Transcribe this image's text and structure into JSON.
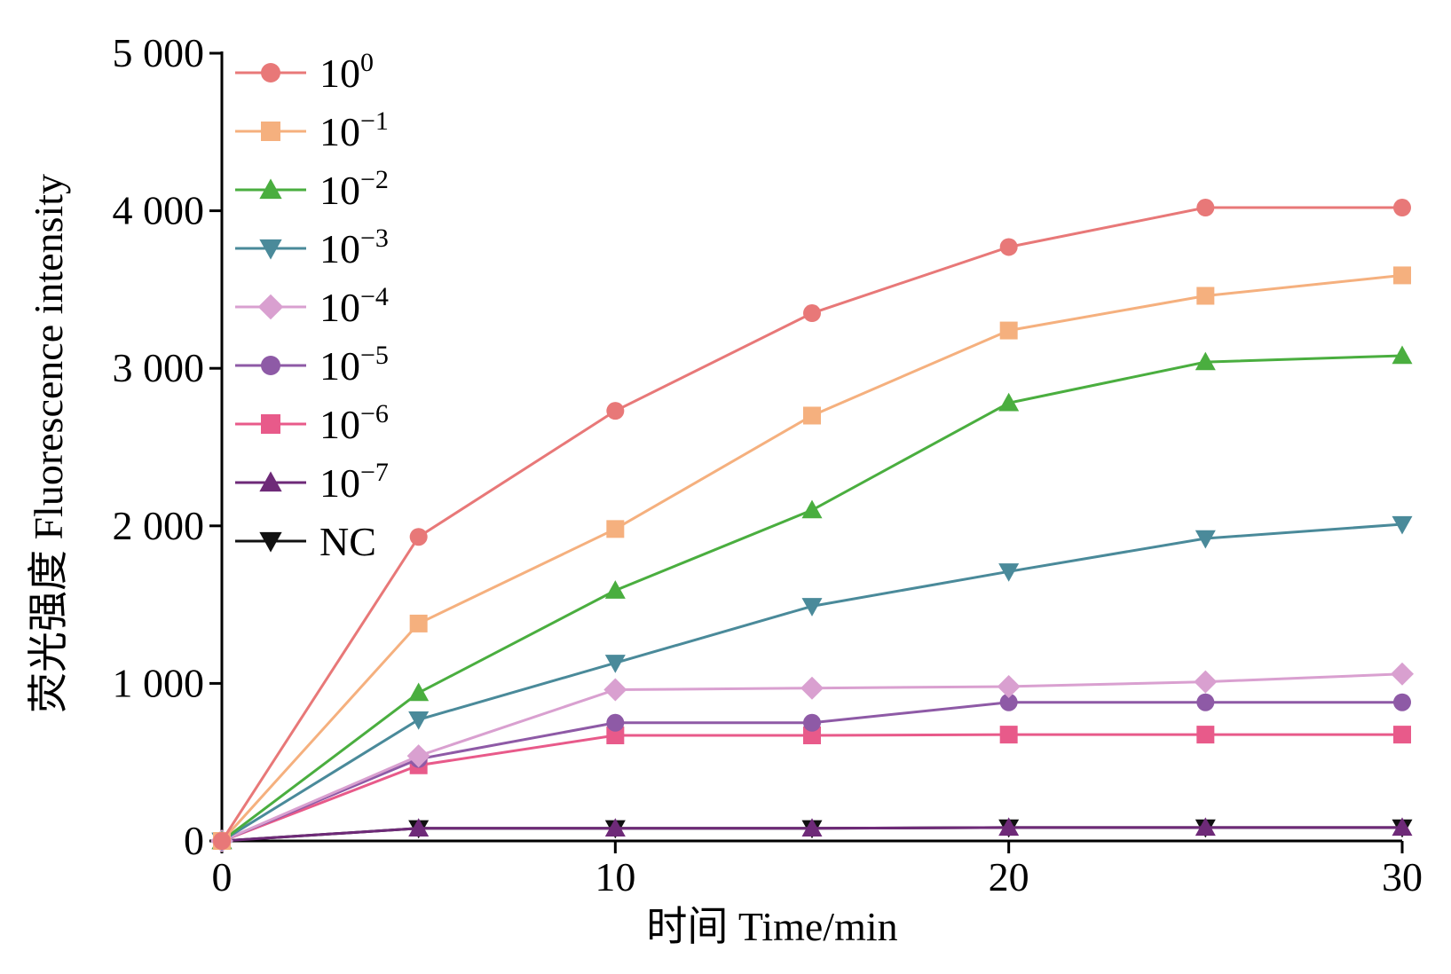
{
  "chart_data": {
    "type": "line",
    "xlabel": "时间 Time/min",
    "ylabel": "荧光强度 Fluorescence intensity",
    "x": [
      0,
      5,
      10,
      15,
      20,
      25,
      30
    ],
    "xlim": [
      0,
      30
    ],
    "ylim": [
      0,
      5000
    ],
    "xticks": [
      0,
      10,
      20,
      30
    ],
    "xtick_labels": [
      "0",
      "10",
      "20",
      "30"
    ],
    "yticks": [
      0,
      1000,
      2000,
      3000,
      4000,
      5000
    ],
    "ytick_labels": [
      "0",
      "1 000",
      "2 000",
      "3 000",
      "4 000",
      "5 000"
    ],
    "grid": false,
    "legend_position": "top-left",
    "series": [
      {
        "name": "10⁰",
        "base": "10",
        "exp": "0",
        "marker": "circle",
        "color": "#e87878",
        "values": [
          0,
          1930,
          2730,
          3350,
          3770,
          4020,
          4020
        ]
      },
      {
        "name": "10⁻¹",
        "base": "10",
        "exp": "−1",
        "marker": "square",
        "color": "#f5b07e",
        "values": [
          0,
          1380,
          1980,
          2700,
          3240,
          3460,
          3590
        ]
      },
      {
        "name": "10⁻²",
        "base": "10",
        "exp": "−2",
        "marker": "triangle-up",
        "color": "#4aae3f",
        "values": [
          0,
          940,
          1590,
          2100,
          2780,
          3040,
          3080
        ]
      },
      {
        "name": "10⁻³",
        "base": "10",
        "exp": "−3",
        "marker": "triangle-down",
        "color": "#4a8a9a",
        "values": [
          0,
          770,
          1130,
          1490,
          1710,
          1920,
          2010
        ]
      },
      {
        "name": "10⁻⁴",
        "base": "10",
        "exp": "−4",
        "marker": "diamond",
        "color": "#d9a0d0",
        "values": [
          0,
          540,
          960,
          970,
          980,
          1010,
          1060
        ]
      },
      {
        "name": "10⁻⁵",
        "base": "10",
        "exp": "−5",
        "marker": "circle",
        "color": "#8e5aa6",
        "values": [
          0,
          520,
          750,
          750,
          880,
          880,
          880
        ]
      },
      {
        "name": "10⁻⁶",
        "base": "10",
        "exp": "−6",
        "marker": "square",
        "color": "#e85a8a",
        "values": [
          0,
          480,
          670,
          670,
          675,
          675,
          675
        ]
      },
      {
        "name": "10⁻⁷",
        "base": "10",
        "exp": "−7",
        "marker": "triangle-up",
        "color": "#6e2a78",
        "values": [
          0,
          80,
          80,
          80,
          85,
          85,
          85
        ]
      },
      {
        "name": "NC",
        "base": "NC",
        "exp": "",
        "marker": "triangle-down",
        "color": "#111111",
        "values": [
          0,
          80,
          80,
          80,
          85,
          85,
          85
        ]
      }
    ]
  }
}
